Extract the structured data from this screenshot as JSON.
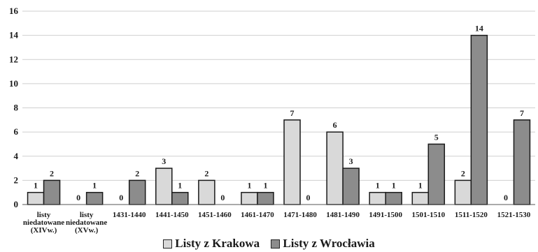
{
  "chart_data": {
    "type": "bar",
    "categories": [
      [
        "listy",
        "niedatowane",
        "(XIVw.)"
      ],
      [
        "listy",
        "niedatowane",
        "(XVw.)"
      ],
      [
        "1431-1440"
      ],
      [
        "1441-1450"
      ],
      [
        "1451-1460"
      ],
      [
        "1461-1470"
      ],
      [
        "1471-1480"
      ],
      [
        "1481-1490"
      ],
      [
        "1491-1500"
      ],
      [
        "1501-1510"
      ],
      [
        "1511-1520"
      ],
      [
        "1521-1530"
      ]
    ],
    "series": [
      {
        "name": "Listy z Krakowa",
        "color": "#d9d9d9",
        "values": [
          1,
          0,
          0,
          3,
          2,
          1,
          7,
          6,
          1,
          1,
          2,
          0
        ]
      },
      {
        "name": "Listy z Wrocławia",
        "color": "#8c8c8c",
        "values": [
          2,
          1,
          2,
          1,
          0,
          1,
          0,
          3,
          1,
          5,
          14,
          7
        ]
      }
    ],
    "ylim": [
      0,
      16
    ],
    "yticks": [
      0,
      2,
      4,
      6,
      8,
      10,
      12,
      14,
      16
    ],
    "grid": true,
    "legend_position": "bottom"
  }
}
